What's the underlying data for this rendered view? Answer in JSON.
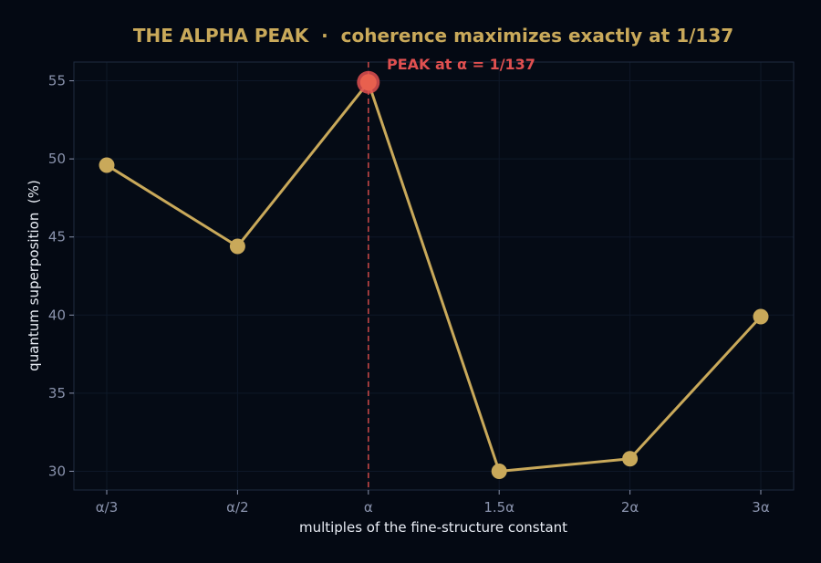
{
  "chart_data": {
    "type": "line",
    "title": "THE ALPHA PEAK  ·  coherence maximizes exactly at 1/137",
    "xlabel": "multiples of the fine-structure constant",
    "ylabel": "quantum superposition  (%)",
    "categories": [
      "α/3",
      "α/2",
      "α",
      "1.5α",
      "2α",
      "3α"
    ],
    "values": [
      49.6,
      44.4,
      54.9,
      30.0,
      30.8,
      39.9
    ],
    "ylim": [
      28.8,
      56.2
    ],
    "yticks": [
      30,
      35,
      40,
      45,
      50,
      55
    ],
    "grid": true,
    "peak": {
      "category": "α",
      "value": 54.9,
      "label": "PEAK at α = 1/137"
    },
    "colors": {
      "background": "#040913",
      "plot_background": "#050b15",
      "line": "#c9a95a",
      "marker": "#c9a95a",
      "peak_marker": "#e05050",
      "peak_line": "#c04545",
      "title": "#c9a95a",
      "annotation": "#e05050",
      "frame": "#1f2c40",
      "grid": "#0e1828"
    }
  }
}
